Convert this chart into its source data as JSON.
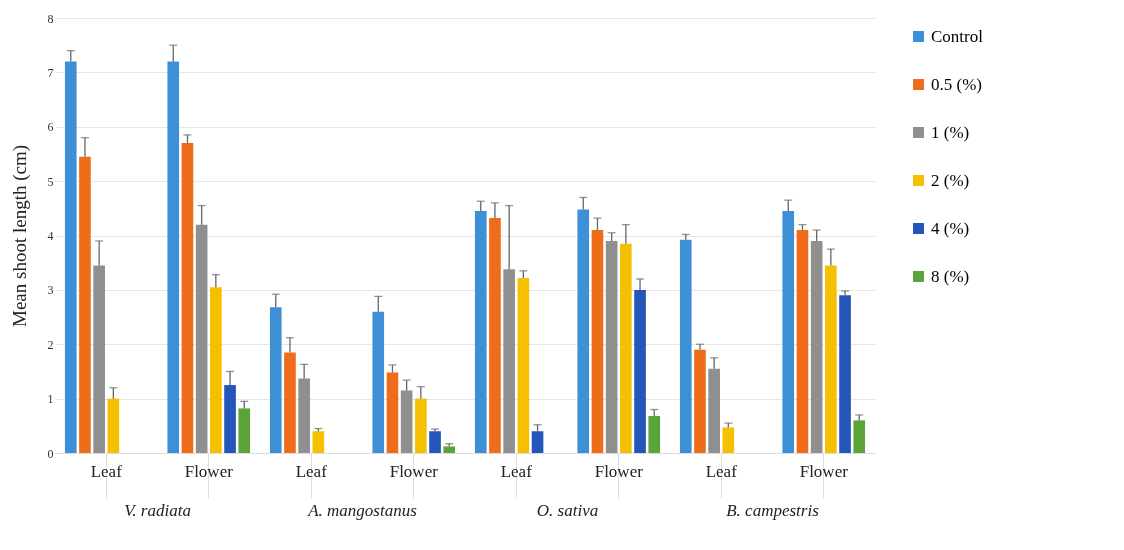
{
  "chart_data": {
    "type": "bar",
    "ylabel": "Mean shoot length (cm)",
    "categories": [
      "Leaf",
      "Flower",
      "Leaf",
      "Flower",
      "Leaf",
      "Flower",
      "Leaf",
      "Flower"
    ],
    "annotations": [
      "V. radiata",
      "A. mangostanus",
      "O. sativa",
      "B. campestris"
    ],
    "series": [
      {
        "name": "Control",
        "color": "#3d8fd6",
        "values": [
          7.2,
          7.2,
          2.68,
          2.6,
          4.45,
          4.48,
          3.92,
          4.45
        ],
        "errors": [
          [
            7.2,
            7.4
          ],
          [
            7.2,
            7.5
          ],
          [
            2.68,
            2.92
          ],
          [
            2.6,
            2.88
          ],
          [
            4.45,
            4.63
          ],
          [
            4.48,
            4.7
          ],
          [
            3.92,
            4.02
          ],
          [
            4.45,
            4.65
          ]
        ]
      },
      {
        "name": "0.5 (%)",
        "color": "#ef6c1a",
        "values": [
          5.45,
          5.7,
          1.85,
          1.48,
          4.32,
          4.1,
          1.9,
          4.1
        ],
        "errors": [
          [
            5.45,
            5.8
          ],
          [
            5.7,
            5.85
          ],
          [
            1.85,
            2.12
          ],
          [
            1.48,
            1.62
          ],
          [
            4.32,
            4.6
          ],
          [
            4.1,
            4.32
          ],
          [
            1.9,
            2.0
          ],
          [
            4.1,
            4.2
          ]
        ]
      },
      {
        "name": "1 (%)",
        "color": "#8f8f8f",
        "values": [
          3.45,
          4.2,
          1.37,
          1.15,
          3.38,
          3.9,
          1.55,
          3.9
        ],
        "errors": [
          [
            3.45,
            3.9
          ],
          [
            4.2,
            4.55
          ],
          [
            1.37,
            1.63
          ],
          [
            1.15,
            1.34
          ],
          [
            3.38,
            4.55
          ],
          [
            3.9,
            4.05
          ],
          [
            1.55,
            1.75
          ],
          [
            3.9,
            4.1
          ]
        ]
      },
      {
        "name": "2 (%)",
        "color": "#f5c000",
        "values": [
          1.0,
          3.05,
          0.4,
          1.0,
          3.22,
          3.85,
          0.47,
          3.45
        ],
        "errors": [
          [
            1.0,
            1.2
          ],
          [
            3.05,
            3.28
          ],
          [
            0.4,
            0.45
          ],
          [
            1.0,
            1.22
          ],
          [
            3.22,
            3.35
          ],
          [
            3.85,
            4.2
          ],
          [
            0.47,
            0.55
          ],
          [
            3.45,
            3.75
          ]
        ]
      },
      {
        "name": "4 (%)",
        "color": "#2455b8",
        "values": [
          null,
          1.25,
          null,
          0.4,
          0.4,
          3.0,
          null,
          2.9
        ],
        "errors": [
          null,
          [
            1.25,
            1.5
          ],
          null,
          [
            0.4,
            0.44
          ],
          [
            0.4,
            0.52
          ],
          [
            3.0,
            3.2
          ],
          null,
          [
            2.9,
            2.98
          ]
        ]
      },
      {
        "name": "8 (%)",
        "color": "#5aa43a",
        "values": [
          null,
          0.82,
          null,
          0.12,
          null,
          0.68,
          null,
          0.6
        ],
        "errors": [
          null,
          [
            0.82,
            0.95
          ],
          null,
          [
            0.12,
            0.17
          ],
          null,
          [
            0.68,
            0.8
          ],
          null,
          [
            0.6,
            0.7
          ]
        ]
      }
    ],
    "ylim": [
      0,
      8
    ],
    "yticks": [
      0,
      1,
      2,
      3,
      4,
      5,
      6,
      7,
      8
    ],
    "grid": "y",
    "legend": "right"
  }
}
